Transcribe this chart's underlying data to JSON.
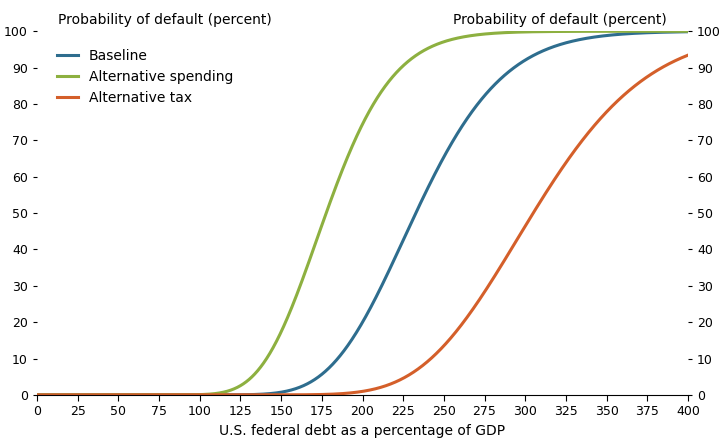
{
  "title_left": "Probability of default (percent)",
  "title_right": "Probability of default (percent)",
  "xlabel": "U.S. federal debt as a percentage of GDP",
  "xlim": [
    0,
    400
  ],
  "ylim": [
    0,
    100
  ],
  "xticks": [
    0,
    25,
    50,
    75,
    100,
    125,
    150,
    175,
    200,
    225,
    250,
    275,
    300,
    325,
    350,
    375,
    400
  ],
  "yticks": [
    0,
    10,
    20,
    30,
    40,
    50,
    60,
    70,
    80,
    90,
    100
  ],
  "series": [
    {
      "label": "Baseline",
      "color": "#2e6d8e",
      "mu": 5.45,
      "sigma": 0.18
    },
    {
      "label": "Alternative spending",
      "color": "#8db040",
      "mu": 5.18,
      "sigma": 0.18
    },
    {
      "label": "Alternative tax",
      "color": "#d45f2a",
      "mu": 5.72,
      "sigma": 0.18
    }
  ],
  "line_width": 2.2,
  "background_color": "#ffffff",
  "title_fontsize": 10,
  "label_fontsize": 10,
  "tick_fontsize": 9,
  "legend_fontsize": 10
}
